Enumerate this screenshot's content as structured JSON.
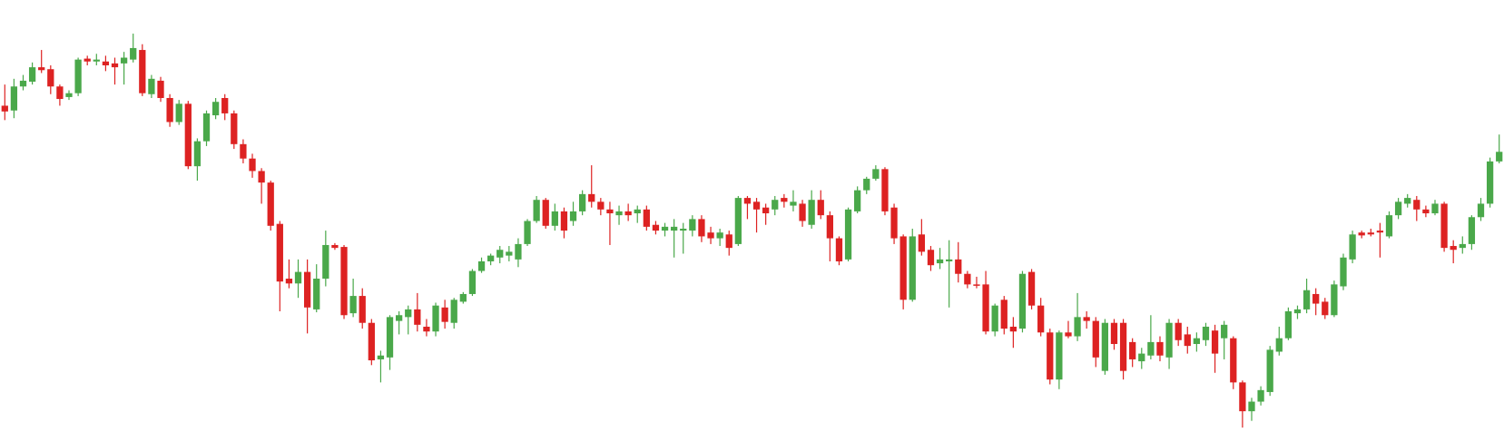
{
  "chart_data": {
    "type": "candlestick",
    "up_color": "#4aa84a",
    "down_color": "#dd2222",
    "ylim": [
      0,
      460
    ],
    "open": [
      350,
      345,
      370,
      375,
      390,
      388,
      370,
      359,
      363,
      399,
      396,
      396,
      394,
      394,
      398,
      408,
      362,
      376,
      358,
      333,
      352,
      287,
      313,
      340,
      358,
      342,
      310,
      295,
      282,
      270,
      227,
      170,
      165,
      177,
      138,
      170,
      205,
      203,
      134,
      152,
      124,
      86,
      88,
      126,
      130,
      138,
      120,
      115,
      140,
      124,
      146,
      154,
      178,
      188,
      192,
      194,
      190,
      206,
      230,
      252,
      225,
      240,
      230,
      240,
      258,
      250,
      242,
      236,
      240,
      238,
      242,
      226,
      220,
      220,
      220,
      220,
      232,
      218,
      212,
      216,
      206,
      254,
      250,
      244,
      242,
      254,
      246,
      248,
      226,
      252,
      236,
      212,
      190,
      240,
      262,
      274,
      284,
      244,
      214,
      148,
      216,
      200,
      186,
      188,
      190,
      175,
      164,
      164,
      115,
      148,
      120,
      118,
      177,
      142,
      114,
      65,
      114,
      110,
      130,
      126,
      74,
      124,
      124,
      104,
      84,
      90,
      104,
      88,
      124,
      112,
      102,
      106,
      116,
      108,
      108,
      62,
      32,
      42,
      52,
      94,
      108,
      134,
      138,
      154,
      146,
      132,
      162,
      190,
      218,
      218,
      220,
      214,
      236,
      248,
      252,
      242,
      238,
      248,
      204,
      202,
      206,
      234,
      248,
      292
    ],
    "high": [
      372,
      378,
      382,
      395,
      408,
      392,
      372,
      366,
      400,
      402,
      404,
      402,
      400,
      406,
      425,
      414,
      382,
      380,
      362,
      356,
      355,
      316,
      345,
      358,
      362,
      345,
      315,
      300,
      285,
      272,
      230,
      190,
      190,
      190,
      185,
      220,
      207,
      205,
      170,
      160,
      128,
      95,
      132,
      136,
      142,
      155,
      128,
      145,
      148,
      150,
      156,
      180,
      192,
      196,
      204,
      204,
      212,
      232,
      256,
      254,
      248,
      244,
      250,
      262,
      288,
      254,
      250,
      246,
      248,
      246,
      246,
      230,
      228,
      232,
      228,
      236,
      236,
      224,
      222,
      220,
      256,
      256,
      254,
      248,
      256,
      258,
      262,
      252,
      262,
      262,
      240,
      214,
      244,
      266,
      276,
      288,
      286,
      248,
      216,
      222,
      232,
      204,
      202,
      210,
      208,
      178,
      172,
      178,
      144,
      152,
      130,
      178,
      180,
      150,
      118,
      116,
      126,
      155,
      136,
      130,
      128,
      128,
      128,
      108,
      98,
      132,
      110,
      128,
      128,
      120,
      114,
      124,
      122,
      126,
      110,
      64,
      46,
      58,
      100,
      120,
      140,
      142,
      170,
      160,
      150,
      168,
      196,
      220,
      220,
      222,
      228,
      240,
      254,
      258,
      256,
      246,
      252,
      250,
      210,
      214,
      236,
      254,
      296,
      320
    ],
    "low": [
      335,
      337,
      366,
      372,
      384,
      362,
      350,
      356,
      360,
      392,
      392,
      386,
      372,
      372,
      395,
      360,
      358,
      354,
      328,
      330,
      284,
      272,
      308,
      336,
      335,
      305,
      290,
      275,
      248,
      220,
      136,
      160,
      150,
      113,
      135,
      162,
      200,
      128,
      130,
      118,
      80,
      62,
      75,
      112,
      112,
      115,
      110,
      110,
      118,
      118,
      144,
      152,
      176,
      184,
      186,
      188,
      182,
      204,
      228,
      222,
      220,
      212,
      225,
      236,
      244,
      236,
      205,
      226,
      230,
      228,
      220,
      216,
      214,
      192,
      196,
      214,
      208,
      206,
      204,
      194,
      204,
      232,
      218,
      226,
      236,
      244,
      240,
      224,
      222,
      232,
      188,
      184,
      188,
      238,
      258,
      272,
      236,
      206,
      138,
      146,
      194,
      178,
      180,
      140,
      166,
      160,
      160,
      112,
      110,
      112,
      98,
      114,
      138,
      110,
      60,
      55,
      108,
      105,
      118,
      78,
      70,
      96,
      65,
      78,
      76,
      86,
      84,
      76,
      100,
      92,
      94,
      100,
      72,
      86,
      55,
      15,
      22,
      38,
      48,
      90,
      106,
      128,
      134,
      132,
      128,
      130,
      158,
      186,
      212,
      214,
      192,
      212,
      232,
      244,
      230,
      234,
      236,
      198,
      186,
      196,
      200,
      230,
      244,
      290
    ],
    "close": [
      344,
      370,
      376,
      390,
      387,
      370,
      357,
      363,
      398,
      396,
      398,
      392,
      390,
      400,
      410,
      363,
      378,
      358,
      333,
      352,
      287,
      313,
      342,
      354,
      342,
      310,
      295,
      282,
      270,
      225,
      167,
      165,
      177,
      140,
      170,
      205,
      202,
      132,
      152,
      124,
      85,
      90,
      130,
      132,
      138,
      122,
      115,
      142,
      125,
      148,
      154,
      178,
      188,
      194,
      200,
      198,
      206,
      230,
      252,
      225,
      240,
      220,
      240,
      258,
      250,
      242,
      238,
      240,
      236,
      242,
      224,
      220,
      224,
      224,
      222,
      232,
      214,
      212,
      218,
      202,
      254,
      248,
      242,
      238,
      252,
      250,
      250,
      230,
      252,
      236,
      212,
      188,
      242,
      262,
      274,
      284,
      240,
      212,
      148,
      214,
      198,
      184,
      190,
      190,
      175,
      164,
      163,
      115,
      142,
      118,
      115,
      175,
      142,
      114,
      65,
      114,
      110,
      130,
      126,
      88,
      124,
      102,
      74,
      86,
      92,
      104,
      90,
      124,
      106,
      100,
      108,
      120,
      92,
      122,
      62,
      32,
      42,
      54,
      96,
      108,
      136,
      138,
      158,
      144,
      132,
      164,
      192,
      216,
      215,
      216,
      218,
      236,
      250,
      254,
      242,
      238,
      248,
      202,
      200,
      206,
      234,
      248,
      292,
      302
    ]
  }
}
